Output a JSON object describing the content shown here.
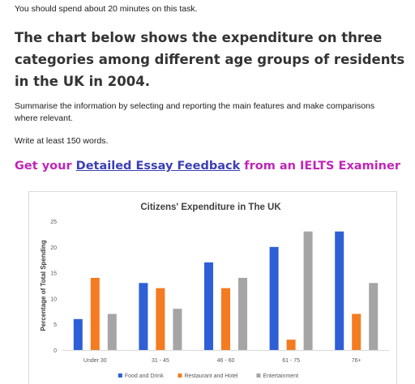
{
  "task": {
    "intro": "You should spend about 20 minutes on this task.",
    "heading": "The chart below shows the expenditure on three categories among different age groups of residents in the UK in 2004.",
    "instruction": "Summarise the information by selecting and reporting the main features and make comparisons where relevant.",
    "word_count": "Write at least 150 words."
  },
  "promo": {
    "prefix": "Get your",
    "link_text": "Detailed Essay Feedback",
    "suffix": "from an IELTS Examiner",
    "color": "#c026b7",
    "link_color": "#3b3fb6"
  },
  "chart_data": {
    "type": "bar",
    "title": "Citizens' Expenditure in The UK",
    "xlabel": "",
    "ylabel": "Percentage of Total Spending",
    "ylim": [
      0,
      25
    ],
    "yticks": [
      0,
      5,
      10,
      15,
      20,
      25
    ],
    "categories": [
      "Under 30",
      "31 - 45",
      "46 - 60",
      "61 - 75",
      "76+"
    ],
    "series": [
      {
        "name": "Food and Drink",
        "color": "#2e5fd6",
        "values": [
          6,
          13,
          17,
          20,
          23
        ]
      },
      {
        "name": "Restaurant and Hotel",
        "color": "#f47b20",
        "values": [
          14,
          12,
          12,
          2,
          7
        ]
      },
      {
        "name": "Entertainment",
        "color": "#a5a5a5",
        "values": [
          7,
          8,
          14,
          23,
          13
        ]
      }
    ],
    "grid": false,
    "legend_position": "bottom"
  }
}
